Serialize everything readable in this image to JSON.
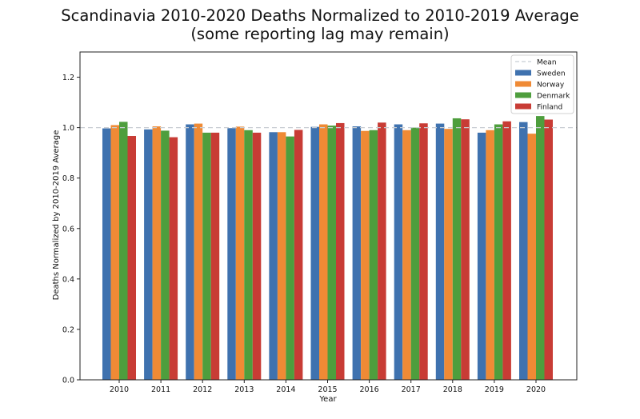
{
  "chart_data": {
    "type": "bar",
    "title": "Scandinavia 2010-2020 Deaths Normalized to 2010-2019 Average",
    "subtitle": "(some reporting lag may remain)",
    "xlabel": "Year",
    "ylabel": "Deaths Normalized by 2010-2019 Average",
    "ylim": [
      0,
      1.3
    ],
    "yticks": [
      "0.0",
      "0.2",
      "0.4",
      "0.6",
      "0.8",
      "1.0",
      "1.2"
    ],
    "categories": [
      "2010",
      "2011",
      "2012",
      "2013",
      "2014",
      "2015",
      "2016",
      "2017",
      "2018",
      "2019",
      "2020"
    ],
    "series": [
      {
        "name": "Sweden",
        "color": "#3f72af",
        "values": [
          0.997,
          0.993,
          1.013,
          0.998,
          0.982,
          1.003,
          1.005,
          1.013,
          1.016,
          0.98,
          1.022
        ]
      },
      {
        "name": "Norway",
        "color": "#ef8a35",
        "values": [
          1.01,
          1.005,
          1.016,
          1.004,
          0.982,
          1.013,
          0.987,
          0.99,
          0.995,
          0.99,
          0.976
        ]
      },
      {
        "name": "Denmark",
        "color": "#4e9e3d",
        "values": [
          1.023,
          0.988,
          0.98,
          0.99,
          0.965,
          1.008,
          0.99,
          1.0,
          1.037,
          1.013,
          1.046
        ]
      },
      {
        "name": "Finland",
        "color": "#c83c35",
        "values": [
          0.967,
          0.962,
          0.98,
          0.98,
          0.991,
          1.018,
          1.02,
          1.017,
          1.033,
          1.025,
          1.032
        ]
      }
    ],
    "mean_line": {
      "label": "Mean",
      "value": 1.0,
      "color": "#c8cdd3",
      "style": "dashed"
    },
    "legend_position": "top-right",
    "grid": false
  }
}
